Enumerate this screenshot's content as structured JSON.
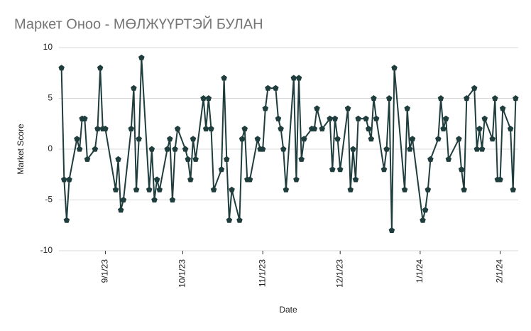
{
  "chart_data": {
    "type": "line",
    "title": "Маркет Оноо - МӨЛЖҮҮРТЭЙ БУЛАН",
    "x_label": "Date",
    "y_label": "Market Score",
    "x": [
      "8/15/23",
      "8/16/23",
      "8/17/23",
      "8/18/23",
      "8/21/23",
      "8/22/23",
      "8/23/23",
      "8/24/23",
      "8/25/23",
      "8/28/23",
      "8/29/23",
      "8/30/23",
      "8/31/23",
      "9/1/23",
      "9/5/23",
      "9/6/23",
      "9/7/23",
      "9/8/23",
      "9/11/23",
      "9/12/23",
      "9/13/23",
      "9/14/23",
      "9/15/23",
      "9/18/23",
      "9/19/23",
      "9/20/23",
      "9/21/23",
      "9/22/23",
      "9/25/23",
      "9/26/23",
      "9/27/23",
      "9/28/23",
      "9/29/23",
      "10/2/23",
      "10/3/23",
      "10/4/23",
      "10/5/23",
      "10/6/23",
      "10/9/23",
      "10/10/23",
      "10/11/23",
      "10/12/23",
      "10/13/23",
      "10/16/23",
      "10/17/23",
      "10/18/23",
      "10/19/23",
      "10/20/23",
      "10/23/23",
      "10/24/23",
      "10/25/23",
      "10/26/23",
      "10/27/23",
      "10/30/23",
      "10/31/23",
      "11/1/23",
      "11/2/23",
      "11/3/23",
      "11/6/23",
      "11/7/23",
      "11/8/23",
      "11/9/23",
      "11/10/23",
      "11/13/23",
      "11/14/23",
      "11/15/23",
      "11/16/23",
      "11/17/23",
      "11/20/23",
      "11/21/23",
      "11/22/23",
      "11/24/23",
      "11/27/23",
      "11/28/23",
      "11/29/23",
      "11/30/23",
      "12/1/23",
      "12/4/23",
      "12/5/23",
      "12/6/23",
      "12/7/23",
      "12/8/23",
      "12/11/23",
      "12/12/23",
      "12/13/23",
      "12/14/23",
      "12/15/23",
      "12/18/23",
      "12/19/23",
      "12/20/23",
      "12/21/23",
      "12/22/23",
      "12/26/23",
      "12/27/23",
      "12/28/23",
      "12/29/23",
      "1/2/24",
      "1/3/24",
      "1/4/24",
      "1/5/24",
      "1/8/24",
      "1/9/24",
      "1/10/24",
      "1/11/24",
      "1/12/24",
      "1/16/24",
      "1/17/24",
      "1/18/24",
      "1/19/24",
      "1/22/24",
      "1/23/24",
      "1/24/24",
      "1/25/24",
      "1/26/24",
      "1/29/24",
      "1/30/24",
      "1/31/24",
      "2/1/24",
      "2/2/24",
      "2/5/24",
      "2/6/24",
      "2/7/24"
    ],
    "series": [
      {
        "name": "Market Score",
        "color": "#1f3d3d",
        "values": [
          8,
          -3,
          -7,
          -3,
          1,
          0,
          3,
          3,
          -1,
          0,
          2,
          8,
          2,
          2,
          -4,
          -1,
          -6,
          -5,
          2,
          6,
          -4,
          1,
          9,
          -4,
          0,
          -5,
          -3,
          -4,
          0,
          1,
          -5,
          0,
          2,
          0,
          -1,
          -3,
          1,
          -1,
          5,
          2,
          5,
          2,
          -4,
          -2,
          7,
          -1,
          -7,
          -4,
          -7,
          1,
          2,
          -3,
          -3,
          1,
          0,
          0,
          4,
          6,
          6,
          3,
          2,
          0,
          -4,
          7,
          -3,
          7,
          -1,
          1,
          2,
          2,
          4,
          2,
          3,
          -2,
          3,
          1,
          -2,
          4,
          -4,
          0,
          -3,
          3,
          3,
          2,
          1,
          5,
          3,
          -2,
          0,
          5,
          -8,
          8,
          -4,
          4,
          0,
          1,
          -7,
          -6,
          -4,
          -1,
          1,
          5,
          2,
          3,
          -1,
          1,
          -2,
          -4,
          5,
          6,
          0,
          2,
          0,
          3,
          1,
          5,
          -3,
          -3,
          4,
          2,
          -4,
          5
        ]
      }
    ],
    "xlim": [
      "8/14/23",
      "2/8/24"
    ],
    "xticks": [
      "9/1/23",
      "10/1/23",
      "11/1/23",
      "12/1/23",
      "1/1/24",
      "2/1/24"
    ],
    "ylim": [
      -10,
      10
    ],
    "yticks": [
      -10,
      -5,
      0,
      5,
      10
    ],
    "grid": true
  }
}
